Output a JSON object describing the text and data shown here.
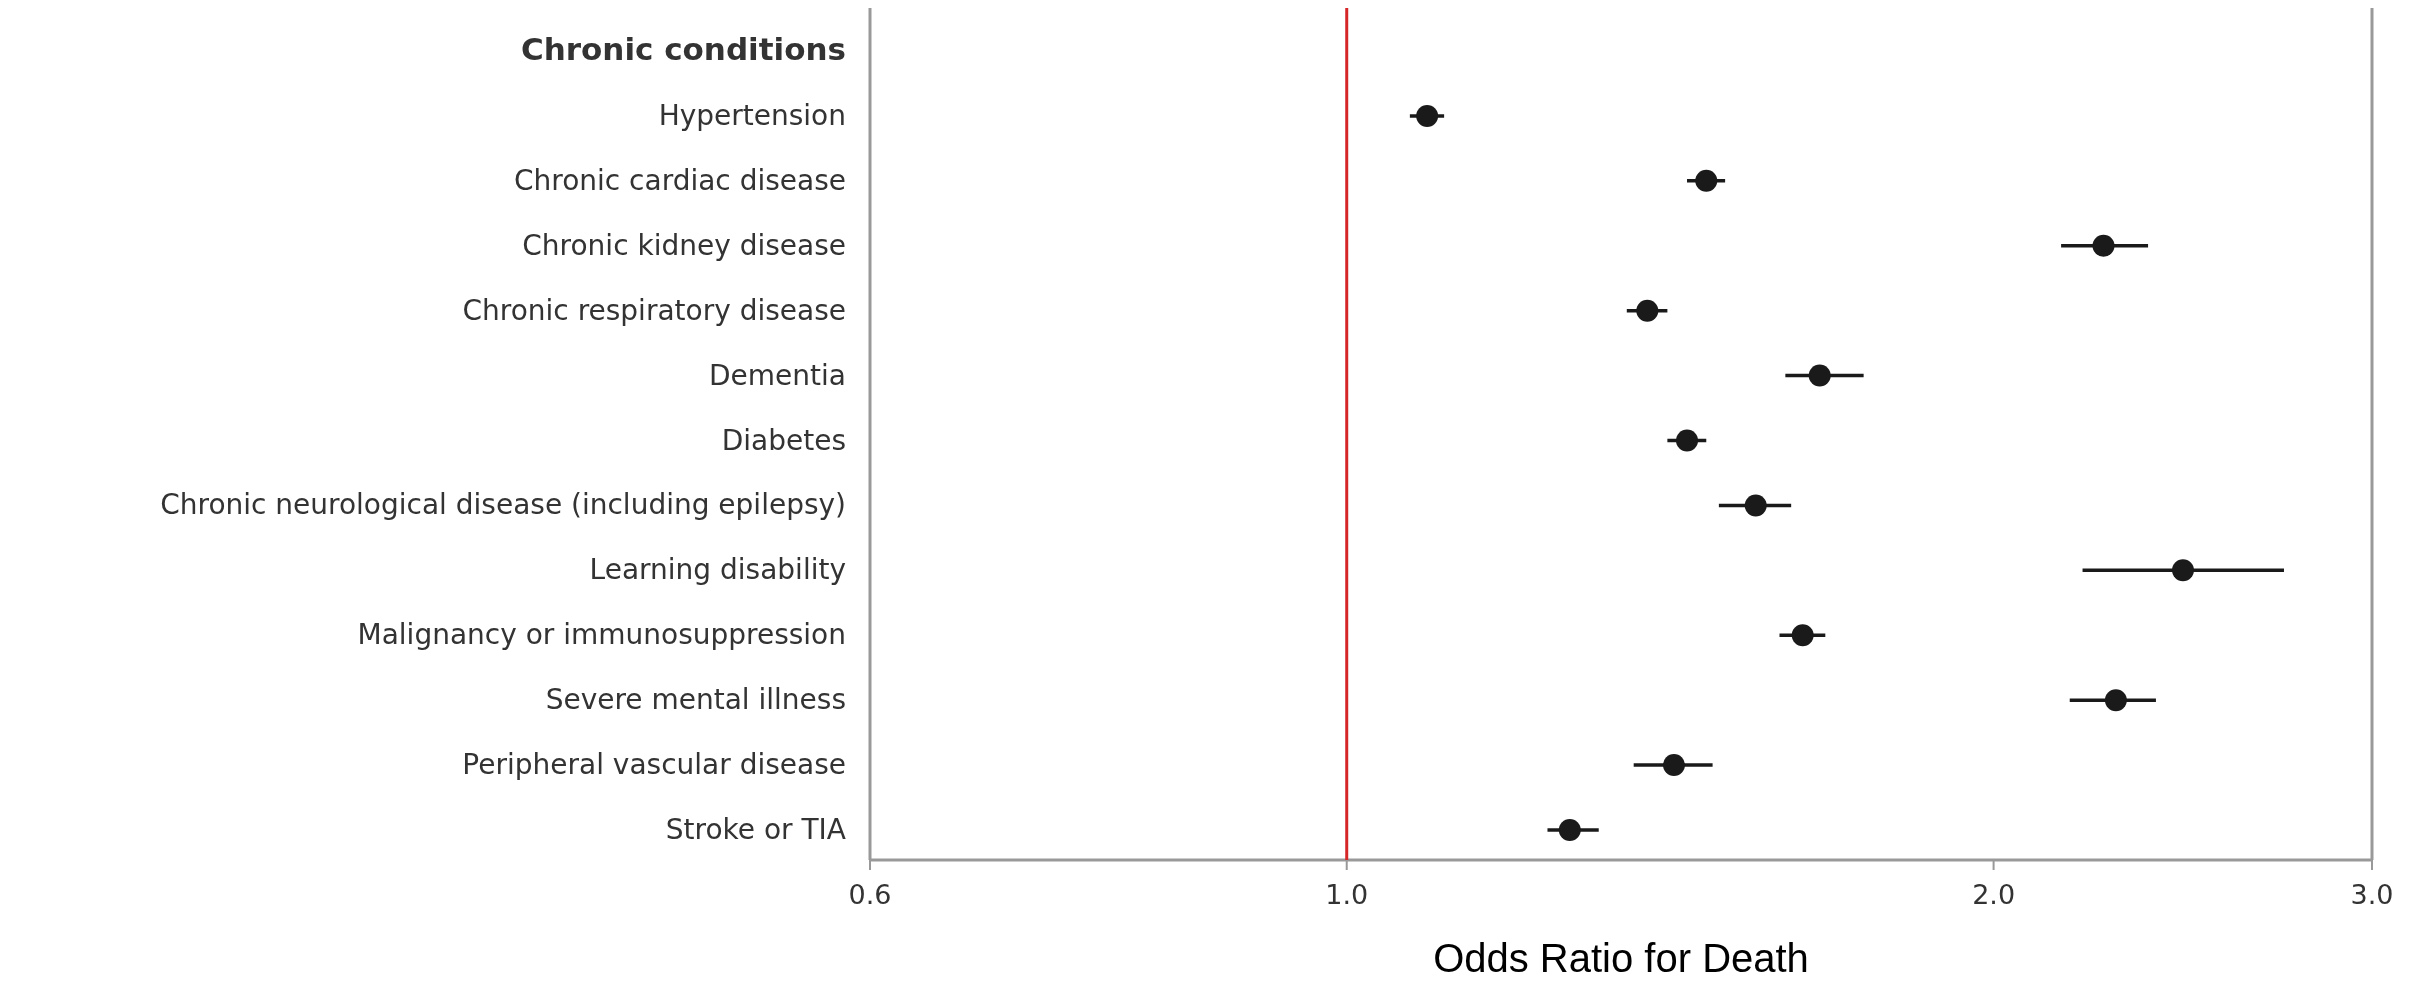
{
  "chart_data": {
    "type": "scatter",
    "xlabel": "Odds Ratio for Death",
    "orientation": "horizontal",
    "log": "x",
    "categories": [
      "Chronic conditions",
      "Hypertension",
      "Chronic cardiac disease",
      "Chronic kidney disease",
      "Chronic respiratory disease",
      "Dementia",
      "Diabetes",
      "Chronic neurological disease (including epilepsy)",
      "Learning disability",
      "Malignancy or immunosuppression",
      "Severe mental illness",
      "Peripheral vascular disease",
      "Stroke or TIA"
    ],
    "series": [
      {
        "color": "#1a1a1a",
        "values": [
          null,
          1.09,
          1.47,
          2.25,
          1.38,
          1.66,
          1.44,
          1.55,
          2.45,
          1.63,
          2.28,
          1.42,
          1.27
        ],
        "errors": [
          null,
          [
            1.07,
            1.11
          ],
          [
            1.44,
            1.5
          ],
          [
            2.15,
            2.36
          ],
          [
            1.35,
            1.41
          ],
          [
            1.6,
            1.74
          ],
          [
            1.41,
            1.47
          ],
          [
            1.49,
            1.61
          ],
          [
            2.2,
            2.73
          ],
          [
            1.59,
            1.67
          ],
          [
            2.17,
            2.38
          ],
          [
            1.36,
            1.48
          ],
          [
            1.24,
            1.31
          ]
        ]
      }
    ],
    "xlim": [
      0.6,
      3.0
    ],
    "xticks": [
      {
        "value": 0.6,
        "label": "0.6"
      },
      {
        "value": 1.0,
        "label": "1.0"
      },
      {
        "value": 2.0,
        "label": "2.0"
      },
      {
        "value": 3.0,
        "label": "3.0"
      }
    ],
    "ref_lines": [
      {
        "axis": "x",
        "value": 1.0,
        "color": "#d62728"
      }
    ],
    "marker": "circle",
    "grid": false
  }
}
